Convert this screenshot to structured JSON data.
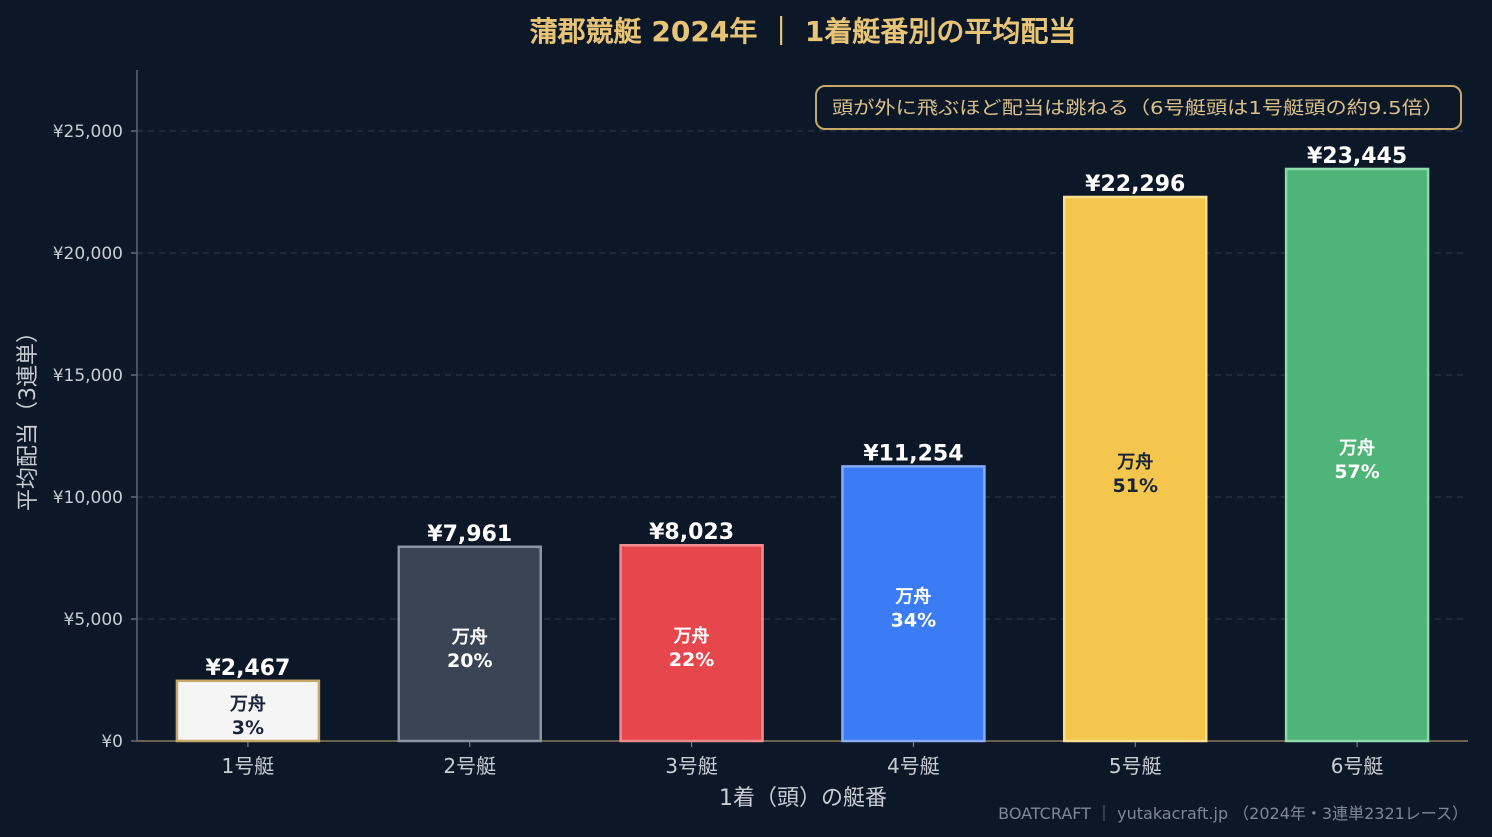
{
  "chart_data": {
    "type": "bar",
    "title": "蒲郡競艇 2024年 ｜ 1着艇番別の平均配当",
    "xlabel": "1着（頭）の艇番",
    "ylabel": "平均配当（3連単）",
    "categories": [
      "1号艇",
      "2号艇",
      "3号艇",
      "4号艇",
      "5号艇",
      "6号艇"
    ],
    "values": [
      2467,
      7961,
      8023,
      11254,
      22296,
      23445
    ],
    "value_labels": [
      "¥2,467",
      "¥7,961",
      "¥8,023",
      "¥11,254",
      "¥22,296",
      "¥23,445"
    ],
    "inner_labels": [
      {
        "line1": "万舟",
        "line2": "3%"
      },
      {
        "line1": "万舟",
        "line2": "20%"
      },
      {
        "line1": "万舟",
        "line2": "22%"
      },
      {
        "line1": "万舟",
        "line2": "34%"
      },
      {
        "line1": "万舟",
        "line2": "51%"
      },
      {
        "line1": "万舟",
        "line2": "57%"
      }
    ],
    "manshu_rate_percent": [
      3,
      20,
      22,
      34,
      51,
      57
    ],
    "ylim": [
      0,
      27500
    ],
    "yticks": [
      0,
      5000,
      10000,
      15000,
      20000,
      25000
    ],
    "ytick_labels": [
      "¥0",
      "¥5,000",
      "¥10,000",
      "¥15,000",
      "¥20,000",
      "¥25,000"
    ],
    "grid": "horizontal dashed",
    "annotation": "頭が外に飛ぶほど配当は跳ねる（6号艇頭は1号艇頭の約9.5倍）",
    "footer": "BOATCRAFT ｜ yutakacraft.jp （2024年・3連単2321レース）",
    "colors": {
      "background": "#0c1728",
      "title": "#e8c477",
      "bar_fills": [
        "#f5f5f5",
        "#3b4454",
        "#e5474c",
        "#3b7cf5",
        "#f4c64e",
        "#4fb477"
      ],
      "bar_edges": [
        "#c8a868",
        "#8b94a3",
        "#f28b8e",
        "#86acf8",
        "#fbe08f",
        "#8fd9ab"
      ],
      "inner_text": [
        "#1a2438",
        "#ffffff",
        "#ffffff",
        "#ffffff",
        "#1a2438",
        "#ffffff"
      ],
      "value_text": "#ffffff",
      "axis_text": "#c9cdd4",
      "annotation_border": "#c8a868",
      "annotation_text": "#d9c08a",
      "footer_text": "#7e8794"
    }
  }
}
